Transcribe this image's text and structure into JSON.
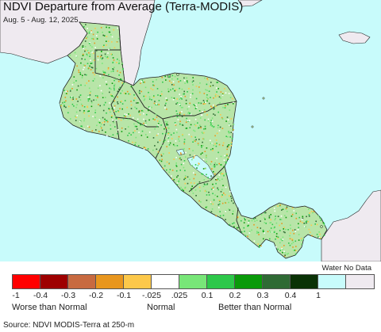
{
  "title": "NDVI Departure from Average (Terra-MODIS)",
  "subtitle": "Aug. 5 - Aug. 12, 2025",
  "colors": {
    "ocean": "#c8fbfb",
    "outside_region": "#efeaf0",
    "land_base": "#b8e5a8",
    "border": "#222222"
  },
  "legend": {
    "nodata_label": "Water No Data",
    "swatches": [
      {
        "value_range": "< -0.4",
        "color": "#ff0000"
      },
      {
        "value_range": "-0.4 to -0.3",
        "color": "#9e0000"
      },
      {
        "value_range": "-0.3 to -0.2",
        "color": "#c86a40"
      },
      {
        "value_range": "-0.2 to -0.1",
        "color": "#e8961e"
      },
      {
        "value_range": "-0.1 to -0.025",
        "color": "#fcc84a"
      },
      {
        "value_range": "-0.025 to 0.025",
        "color": "#ffffff"
      },
      {
        "value_range": "0.025 to 0.1",
        "color": "#78e678"
      },
      {
        "value_range": "0.1 to 0.2",
        "color": "#2dc84a"
      },
      {
        "value_range": "0.2 to 0.3",
        "color": "#0a9a0a"
      },
      {
        "value_range": "0.3 to 0.4",
        "color": "#2f6a34"
      },
      {
        "value_range": "> 0.4",
        "color": "#0a3206"
      },
      {
        "value_range": "water",
        "color": "#c8fbfb"
      },
      {
        "value_range": "no data",
        "color": "#efeaf0"
      }
    ],
    "ticks": [
      "-1",
      "-0.4",
      "-0.3",
      "-0.2",
      "-0.1",
      "-.025",
      ".025",
      "0.1",
      "0.2",
      "0.3",
      "0.4",
      "1"
    ],
    "categories": {
      "worse": "Worse than Normal",
      "normal": "Normal",
      "better": "Better than Normal"
    }
  },
  "source": "Source: NDVI MODIS-Terra at 250-m"
}
